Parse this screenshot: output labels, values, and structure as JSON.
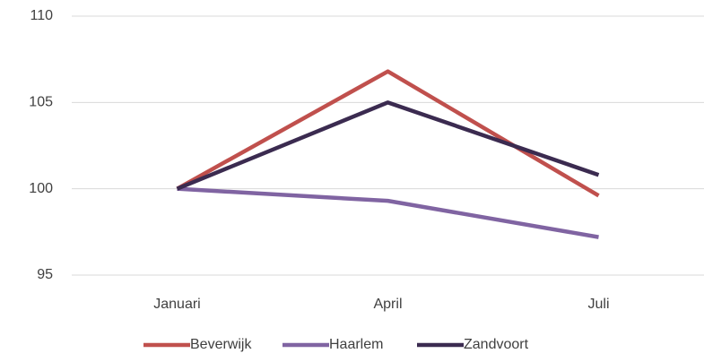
{
  "chart_data": {
    "type": "line",
    "categories": [
      "Januari",
      "April",
      "Juli"
    ],
    "series": [
      {
        "name": "Beverwijk",
        "color": "#c0504d",
        "values": [
          100,
          106.8,
          99.6
        ]
      },
      {
        "name": "Haarlem",
        "color": "#8064a2",
        "values": [
          100,
          99.3,
          97.2
        ]
      },
      {
        "name": "Zandvoort",
        "color": "#3b2b50",
        "values": [
          100,
          105,
          100.8
        ]
      }
    ],
    "ylim": [
      95,
      110
    ],
    "yticks": [
      95,
      100,
      105,
      110
    ],
    "grid": true,
    "legend": "bottom"
  }
}
